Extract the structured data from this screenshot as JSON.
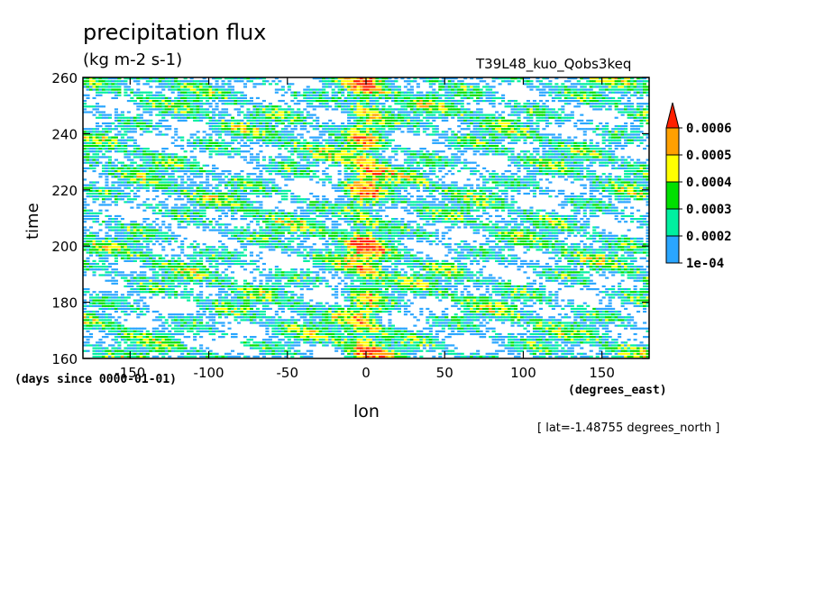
{
  "chart_data": {
    "type": "heatmap",
    "title": "precipitation flux",
    "units": "(kg m-2 s-1)",
    "experiment": "T39L48_kuo_Qobs3keq",
    "xlabel": "lon",
    "xunits": "(degrees_east)",
    "ylabel": "time",
    "yunits": "(days since 0000-01-01)",
    "note": "[ lat=-1.48755 degrees_north ]",
    "xlim": [
      -180,
      180
    ],
    "ylim": [
      160,
      260
    ],
    "xticks": [
      -150,
      -100,
      -50,
      0,
      50,
      100,
      150
    ],
    "yticks": [
      160,
      180,
      200,
      220,
      240,
      260
    ],
    "colorbar": {
      "levels": [
        0.0001,
        0.0002,
        0.0003,
        0.0004,
        0.0005,
        0.0006
      ],
      "labels": [
        "1e-04",
        "0.0002",
        "0.0003",
        "0.0004",
        "0.0005",
        "0.0006"
      ],
      "colors": [
        "#2aa6ff",
        "#00f0a0",
        "#00e000",
        "#ffff00",
        "#ffa000",
        "#ff2000"
      ],
      "extend": "max"
    }
  }
}
